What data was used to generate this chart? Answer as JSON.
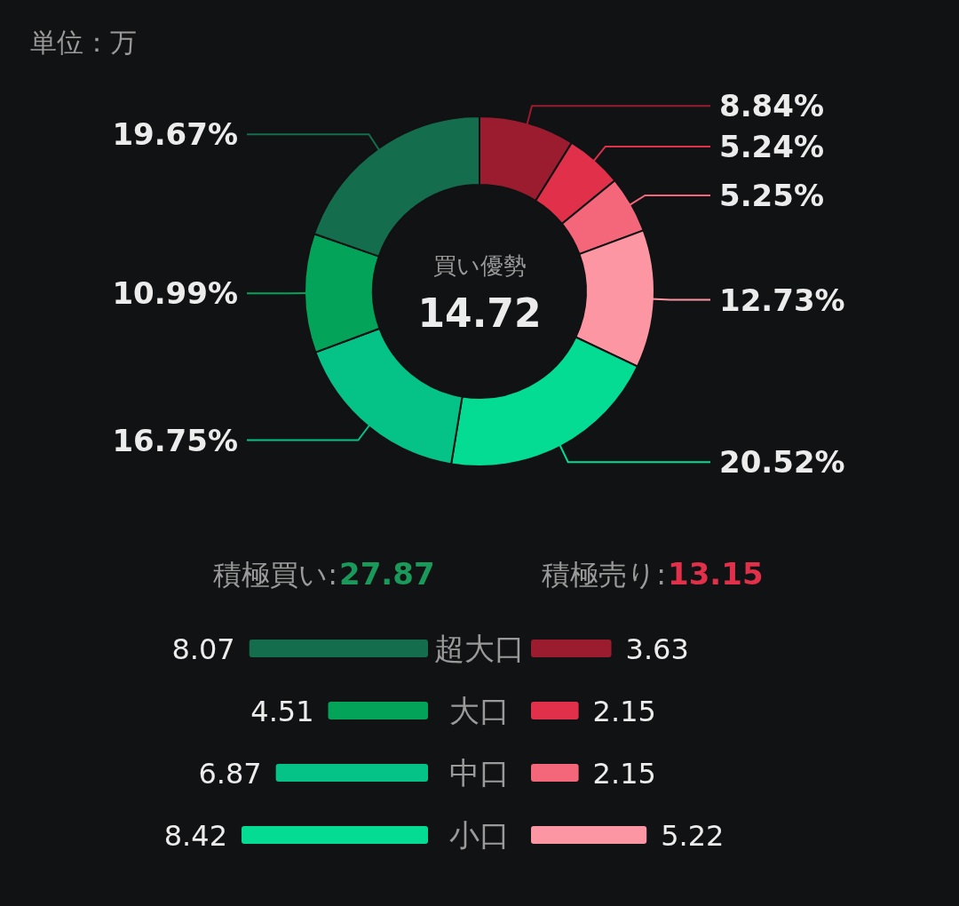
{
  "chart_data": [
    {
      "type": "donut",
      "title": "単位：万",
      "categories": [
        null,
        null,
        null,
        null,
        null,
        null,
        null,
        null
      ],
      "values": [
        8.84,
        5.24,
        5.25,
        12.73,
        20.52,
        16.75,
        10.99,
        19.67
      ],
      "colors": [
        "#9b1c2e",
        "#e0304a",
        "#f4677a",
        "#fd96a3",
        "#04dc94",
        "#05c386",
        "#03a35a",
        "#146e4e"
      ],
      "value_labels": [
        "8.84%",
        "5.24%",
        "5.25%",
        "12.73%",
        "20.52%",
        "16.75%",
        "10.99%",
        "19.67%"
      ],
      "annotations": [
        "買い優勢",
        "14.72"
      ]
    },
    {
      "type": "bar",
      "orientation": "horizontal",
      "categories": [
        "超大口",
        "大口",
        "中口",
        "小口"
      ],
      "values": [
        8.07,
        4.51,
        6.87,
        8.42
      ],
      "colors": [
        "#146e4e",
        "#03a35a",
        "#05c386",
        "#04dc94"
      ],
      "data_labels": true,
      "annotations": [
        "積極買い:",
        "27.87"
      ]
    },
    {
      "type": "bar",
      "orientation": "horizontal",
      "categories": [
        null,
        null,
        null,
        null
      ],
      "values": [
        3.63,
        2.15,
        2.15,
        5.22
      ],
      "colors": [
        "#9b1c2e",
        "#e0304a",
        "#f4677a",
        "#fd96a3"
      ],
      "data_labels": true,
      "annotations": [
        "積極売り:",
        "13.15"
      ]
    }
  ]
}
